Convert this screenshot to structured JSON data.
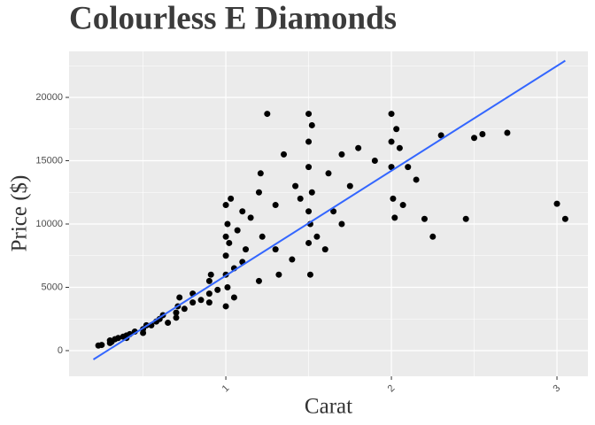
{
  "chart_data": {
    "type": "scatter",
    "title": "Colourless E Diamonds",
    "x_label": "Carat",
    "y_label": "Price ($)",
    "x": [
      0.23,
      0.25,
      0.3,
      0.3,
      0.31,
      0.33,
      0.35,
      0.38,
      0.4,
      0.4,
      0.42,
      0.45,
      0.5,
      0.5,
      0.52,
      0.55,
      0.58,
      0.6,
      0.62,
      0.65,
      0.7,
      0.7,
      0.71,
      0.72,
      0.75,
      0.8,
      0.8,
      0.85,
      0.9,
      0.9,
      0.9,
      0.91,
      0.95,
      1.0,
      1.0,
      1.0,
      1.0,
      1.0,
      1.01,
      1.01,
      1.02,
      1.03,
      1.05,
      1.05,
      1.07,
      1.1,
      1.1,
      1.12,
      1.15,
      1.2,
      1.2,
      1.21,
      1.22,
      1.25,
      1.3,
      1.3,
      1.32,
      1.35,
      1.4,
      1.42,
      1.45,
      1.5,
      1.5,
      1.5,
      1.5,
      1.5,
      1.51,
      1.51,
      1.52,
      1.52,
      1.55,
      1.6,
      1.62,
      1.65,
      1.7,
      1.7,
      1.75,
      1.8,
      1.9,
      2.0,
      2.0,
      2.0,
      2.01,
      2.02,
      2.03,
      2.05,
      2.07,
      2.1,
      2.15,
      2.2,
      2.25,
      2.3,
      2.45,
      2.5,
      2.55,
      2.7,
      3.0,
      3.05
    ],
    "y": [
      400,
      450,
      600,
      800,
      700,
      900,
      1000,
      1100,
      1200,
      1000,
      1300,
      1500,
      1700,
      1400,
      2000,
      2000,
      2300,
      2500,
      2800,
      2200,
      3000,
      2600,
      3500,
      4200,
      3300,
      3800,
      4500,
      4000,
      4500,
      5500,
      3800,
      6000,
      4800,
      6000,
      9000,
      11500,
      3500,
      7500,
      5000,
      10000,
      8500,
      12000,
      6500,
      4200,
      9500,
      11000,
      7000,
      8000,
      10500,
      12500,
      5500,
      14000,
      9000,
      18700,
      8000,
      11500,
      6000,
      15500,
      7200,
      13000,
      12000,
      8500,
      11000,
      14500,
      16500,
      18700,
      6000,
      10000,
      17800,
      12500,
      9000,
      8000,
      14000,
      11000,
      10000,
      15500,
      13000,
      16000,
      15000,
      14500,
      16500,
      18700,
      12000,
      10500,
      17500,
      16000,
      11500,
      14500,
      13500,
      10400,
      9000,
      17000,
      10400,
      16800,
      17100,
      17200,
      11600,
      10400
    ],
    "color": "#000000",
    "trend": {
      "x": [
        0.2,
        3.05
      ],
      "y": [
        -700,
        22900
      ],
      "color": "#3366ff"
    },
    "xlim": [
      0.053,
      3.187
    ],
    "xticks": [
      1,
      2,
      3
    ],
    "ylim": [
      -2028,
      23636
    ],
    "yticks": [
      0,
      5000,
      10000,
      15000,
      20000
    ],
    "grid": true
  }
}
